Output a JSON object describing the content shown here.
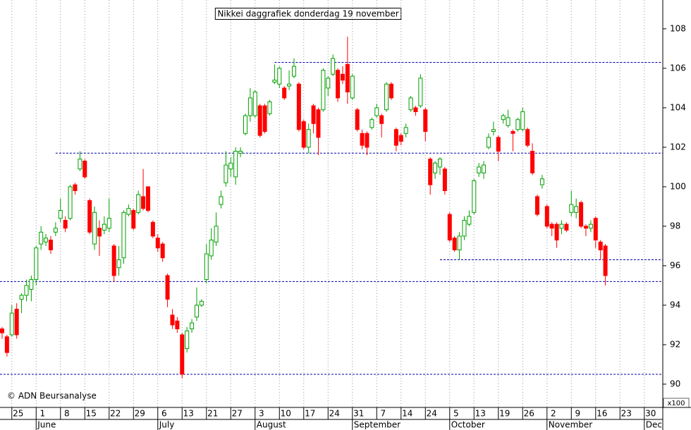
{
  "chart_data": {
    "type": "candlestick",
    "title": "Nikkei daggrafiek donderdag 19 november",
    "credit": "© ADN Beursanalyse",
    "y_unit_label": "x100",
    "xlim": [
      -0.43,
      135.8
    ],
    "ylim": [
      88.82,
      109.46
    ],
    "yticks": [
      90,
      92,
      94,
      96,
      98,
      100,
      102,
      104,
      106,
      108
    ],
    "xticks": [
      {
        "value": 2,
        "label": "25"
      },
      {
        "value": 7,
        "label": "1"
      },
      {
        "value": 12,
        "label": "8"
      },
      {
        "value": 17,
        "label": "15"
      },
      {
        "value": 22,
        "label": "22"
      },
      {
        "value": 27,
        "label": "29"
      },
      {
        "value": 32,
        "label": "6"
      },
      {
        "value": 37,
        "label": "13"
      },
      {
        "value": 42,
        "label": "21"
      },
      {
        "value": 47,
        "label": "27"
      },
      {
        "value": 52,
        "label": "3"
      },
      {
        "value": 57,
        "label": "10"
      },
      {
        "value": 62,
        "label": "17"
      },
      {
        "value": 67,
        "label": "24"
      },
      {
        "value": 72,
        "label": "31"
      },
      {
        "value": 77,
        "label": "7"
      },
      {
        "value": 82,
        "label": "14"
      },
      {
        "value": 87,
        "label": "24"
      },
      {
        "value": 92,
        "label": "5"
      },
      {
        "value": 97,
        "label": "13"
      },
      {
        "value": 102,
        "label": "19"
      },
      {
        "value": 107,
        "label": "26"
      },
      {
        "value": 112,
        "label": "2"
      },
      {
        "value": 117,
        "label": "9"
      },
      {
        "value": 122,
        "label": "16"
      },
      {
        "value": 127,
        "label": "23"
      },
      {
        "value": 132,
        "label": "30"
      }
    ],
    "month_ticks": [
      {
        "value": 7,
        "label": "June"
      },
      {
        "value": 32,
        "label": "July"
      },
      {
        "value": 52,
        "label": "August"
      },
      {
        "value": 72,
        "label": "September"
      },
      {
        "value": 92,
        "label": "October"
      },
      {
        "value": 112,
        "label": "November"
      },
      {
        "value": 132,
        "label": "Dec"
      }
    ],
    "grid": true,
    "up_color": "#00a000",
    "down_color": "#ff0000",
    "level_color": "#0000aa",
    "levels": [
      {
        "value": 106.3,
        "start": 56
      },
      {
        "value": 101.7,
        "start": 11
      },
      {
        "value": 96.3,
        "start": 90
      },
      {
        "value": 95.2,
        "start": -0.43
      },
      {
        "value": 90.5,
        "start": -0.43
      }
    ],
    "x": [
      0,
      1,
      2,
      3,
      4,
      5,
      6,
      7,
      8,
      9,
      10,
      11,
      12,
      13,
      14,
      15,
      16,
      17,
      18,
      19,
      20,
      21,
      22,
      23,
      24,
      25,
      26,
      27,
      28,
      29,
      30,
      31,
      32,
      33,
      34,
      35,
      36,
      37,
      38,
      39,
      40,
      41,
      42,
      43,
      44,
      45,
      46,
      47,
      48,
      49,
      50,
      51,
      52,
      53,
      54,
      55,
      56,
      57,
      58,
      59,
      60,
      61,
      62,
      63,
      64,
      65,
      66,
      67,
      68,
      69,
      70,
      71,
      72,
      73,
      74,
      75,
      76,
      77,
      78,
      79,
      80,
      81,
      82,
      83,
      84,
      85,
      86,
      87,
      88,
      89,
      90,
      91,
      92,
      93,
      94,
      95,
      96,
      97,
      98,
      99,
      100,
      101,
      102,
      103,
      104,
      105,
      106,
      107,
      108,
      109,
      110,
      111,
      112,
      113,
      114,
      115,
      116,
      117,
      118,
      119,
      120,
      121,
      122,
      123,
      124
    ],
    "open": [
      92.8,
      92.4,
      92.5,
      93.8,
      94.3,
      94.5,
      94.8,
      95.3,
      97.1,
      97.2,
      97.3,
      97.7,
      98.4,
      98.3,
      98.4,
      100.1,
      100.9,
      101.3,
      99.3,
      97.1,
      97.9,
      97.8,
      97.9,
      97.0,
      95.9,
      96.4,
      98.6,
      98.8,
      98.7,
      99.5,
      100.0,
      98.2,
      97.4,
      97.1,
      95.5,
      93.5,
      93.2,
      92.5,
      91.8,
      92.8,
      93.4,
      94.0,
      95.3,
      96.5,
      97.2,
      99.1,
      100.2,
      100.9,
      100.5,
      101.7,
      102.7,
      103.6,
      103.6,
      104.1,
      104.1,
      103.7,
      105.3,
      105.2,
      105.0,
      105.1,
      105.6,
      105.2,
      103.3,
      102.0,
      104.1,
      103.9,
      103.9,
      105.0,
      105.7,
      105.9,
      105.7,
      106.2,
      104.5,
      103.9,
      102.7,
      102.7,
      103.0,
      103.6,
      103.6,
      103.9,
      105.2,
      102.9,
      102.6,
      102.7,
      103.9,
      104.0,
      104.1,
      103.9,
      101.4,
      100.7,
      101.0,
      100.9,
      98.6,
      97.4,
      96.8,
      97.5,
      98.1,
      98.7,
      100.7,
      100.7,
      102.0,
      102.8,
      102.5,
      103.4,
      103.1,
      102.8,
      102.9,
      102.9,
      102.9,
      101.8,
      99.5,
      100.1,
      99.0,
      98.1,
      98.1,
      97.9,
      98.1,
      98.7,
      98.7,
      99.2,
      98.0,
      97.9,
      98.4,
      97.2,
      97.0
    ],
    "high": [
      92.9,
      92.5,
      94.0,
      94.1,
      94.6,
      95.3,
      95.5,
      97.0,
      98.0,
      97.6,
      97.5,
      98.2,
      99.4,
      98.5,
      100.1,
      100.2,
      101.8,
      101.4,
      99.4,
      99.0,
      98.3,
      98.5,
      99.4,
      97.1,
      97.0,
      98.8,
      99.1,
      98.9,
      99.8,
      100.9,
      100.0,
      98.3,
      97.6,
      97.2,
      95.6,
      93.8,
      93.4,
      92.6,
      92.9,
      93.3,
      94.9,
      94.3,
      97.1,
      97.9,
      98.7,
      99.8,
      101.8,
      101.5,
      102.0,
      102.0,
      103.7,
      105.0,
      104.9,
      104.2,
      104.2,
      104.4,
      106.2,
      106.1,
      105.1,
      105.9,
      106.5,
      105.3,
      103.4,
      103.2,
      104.2,
      104.0,
      106.0,
      105.6,
      106.7,
      106.0,
      106.1,
      107.6,
      105.7,
      104.0,
      102.9,
      102.8,
      103.5,
      104.2,
      103.7,
      105.3,
      105.3,
      103.0,
      102.7,
      103.2,
      104.6,
      104.1,
      105.7,
      104.0,
      101.5,
      101.3,
      101.5,
      101.0,
      98.7,
      97.5,
      97.7,
      98.5,
      98.8,
      100.4,
      101.2,
      101.3,
      102.7,
      103.3,
      102.6,
      103.7,
      103.9,
      102.9,
      103.5,
      104.0,
      103.0,
      102.2,
      99.6,
      100.6,
      99.1,
      98.2,
      98.2,
      98.3,
      98.2,
      99.8,
      99.4,
      99.3,
      98.1,
      98.3,
      98.5,
      97.3,
      97.1
    ],
    "low": [
      92.3,
      91.4,
      92.4,
      92.3,
      93.6,
      94.2,
      94.2,
      95.0,
      96.8,
      97.0,
      96.6,
      97.5,
      98.2,
      97.7,
      98.3,
      99.6,
      100.8,
      100.4,
      97.6,
      96.8,
      96.5,
      97.6,
      97.7,
      95.2,
      95.5,
      96.1,
      98.5,
      97.8,
      98.6,
      98.8,
      98.7,
      97.4,
      96.7,
      96.2,
      93.9,
      92.8,
      92.6,
      90.3,
      91.6,
      92.6,
      93.2,
      93.9,
      95.1,
      96.3,
      97.0,
      98.9,
      100.0,
      100.5,
      100.1,
      101.5,
      102.6,
      103.3,
      103.5,
      102.5,
      102.7,
      103.6,
      105.2,
      105.0,
      104.4,
      104.9,
      105.5,
      102.8,
      101.9,
      101.7,
      102.7,
      101.6,
      103.8,
      104.6,
      105.6,
      104.3,
      105.2,
      104.2,
      104.4,
      102.8,
      101.9,
      101.6,
      102.9,
      103.5,
      102.5,
      103.8,
      104.4,
      101.8,
      102.1,
      102.5,
      103.8,
      103.6,
      104.0,
      102.3,
      99.6,
      100.4,
      100.6,
      99.6,
      97.2,
      96.7,
      96.3,
      97.3,
      98.0,
      98.6,
      100.5,
      100.4,
      101.9,
      102.6,
      101.3,
      103.2,
      103.0,
      101.8,
      102.8,
      102.8,
      102.0,
      100.6,
      98.5,
      99.9,
      97.9,
      97.5,
      96.9,
      97.6,
      97.7,
      98.5,
      98.4,
      97.9,
      97.5,
      97.7,
      96.9,
      96.3,
      95.0
    ],
    "close": [
      92.6,
      91.6,
      93.6,
      92.5,
      94.5,
      95.0,
      95.3,
      96.9,
      97.7,
      97.4,
      96.8,
      97.9,
      98.8,
      97.9,
      100.0,
      99.8,
      101.4,
      100.5,
      97.7,
      98.7,
      97.5,
      98.1,
      98.4,
      95.5,
      96.3,
      98.7,
      98.9,
      97.9,
      99.6,
      98.9,
      98.8,
      97.5,
      96.9,
      96.4,
      94.3,
      93.0,
      92.8,
      90.5,
      92.7,
      93.1,
      94.0,
      94.2,
      96.6,
      97.3,
      98.0,
      99.5,
      101.1,
      101.2,
      101.8,
      101.8,
      103.6,
      104.5,
      104.8,
      102.6,
      102.8,
      104.3,
      105.4,
      106.0,
      104.5,
      105.2,
      106.1,
      102.9,
      102.0,
      102.9,
      103.2,
      102.5,
      105.9,
      105.5,
      106.5,
      104.5,
      105.4,
      104.8,
      105.6,
      102.9,
      102.1,
      102.0,
      103.4,
      104.0,
      103.2,
      105.2,
      104.5,
      102.1,
      102.3,
      103.0,
      104.5,
      103.8,
      105.5,
      102.8,
      100.1,
      101.2,
      101.4,
      99.8,
      97.3,
      96.8,
      97.5,
      98.3,
      98.5,
      100.3,
      101.0,
      101.1,
      102.5,
      102.9,
      101.8,
      103.6,
      103.5,
      102.7,
      103.4,
      103.8,
      102.1,
      100.7,
      98.6,
      100.4,
      98.0,
      97.9,
      97.3,
      98.1,
      97.8,
      99.1,
      99.0,
      98.0,
      97.9,
      98.1,
      97.3,
      96.8,
      95.5
    ]
  }
}
